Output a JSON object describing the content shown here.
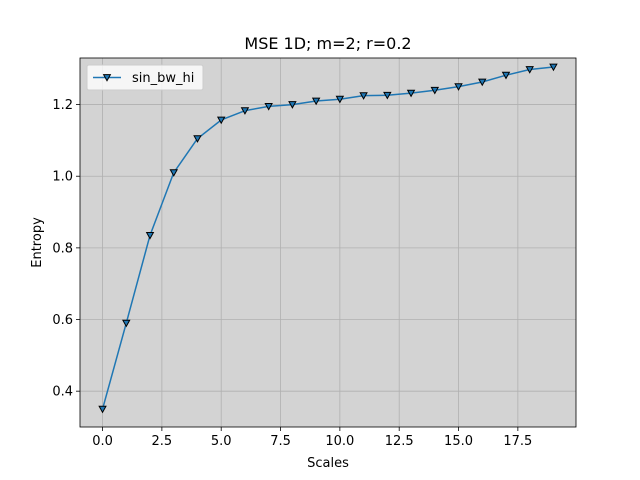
{
  "chart_data": {
    "type": "line",
    "title": "MSE 1D; m=2; r=0.2",
    "xlabel": "Scales",
    "ylabel": "Entropy",
    "xlim": [
      -0.95,
      19.95
    ],
    "ylim": [
      0.3,
      1.33
    ],
    "xticks": [
      "0.0",
      "2.5",
      "5.0",
      "7.5",
      "10.0",
      "12.5",
      "15.0",
      "17.5"
    ],
    "xtick_values": [
      0,
      2.5,
      5,
      7.5,
      10,
      12.5,
      15,
      17.5
    ],
    "yticks": [
      "0.4",
      "0.6",
      "0.8",
      "1.0",
      "1.2"
    ],
    "ytick_values": [
      0.4,
      0.6,
      0.8,
      1.0,
      1.2
    ],
    "grid": true,
    "legend_position": "top-left",
    "background_color": "#d3d3d3",
    "series": [
      {
        "name": "sin_bw_hi",
        "color": "#1f77b4",
        "marker": "triangle-down",
        "x": [
          0,
          1,
          2,
          3,
          4,
          5,
          6,
          7,
          8,
          9,
          10,
          11,
          12,
          13,
          14,
          15,
          16,
          17,
          18,
          19
        ],
        "y": [
          0.35,
          0.59,
          0.835,
          1.01,
          1.105,
          1.157,
          1.183,
          1.195,
          1.2,
          1.21,
          1.215,
          1.225,
          1.226,
          1.232,
          1.24,
          1.25,
          1.263,
          1.282,
          1.298,
          1.305
        ]
      }
    ]
  }
}
